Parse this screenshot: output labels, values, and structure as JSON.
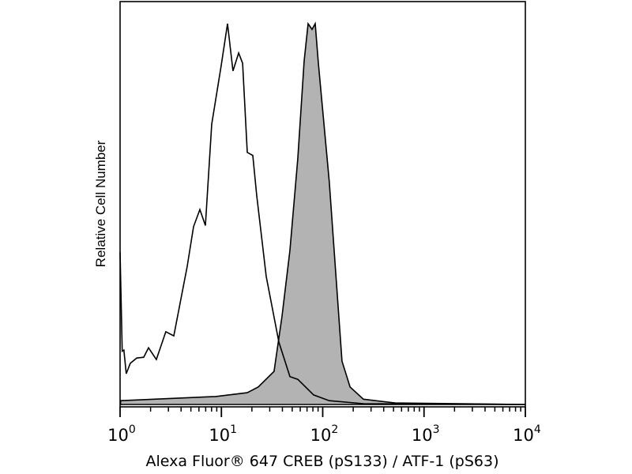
{
  "chart_data": {
    "type": "area",
    "title": "",
    "xlabel": "Alexa Fluor® 647 CREB (pS133) / ATF-1 (pS63)",
    "ylabel": "Relative Cell Number",
    "x_scale": "log",
    "xlim": [
      1,
      10000
    ],
    "ylim": [
      0,
      100
    ],
    "grid": false,
    "x_ticks": [
      {
        "base": "10",
        "exp": "0",
        "value": 1
      },
      {
        "base": "10",
        "exp": "1",
        "value": 10
      },
      {
        "base": "10",
        "exp": "2",
        "value": 100
      },
      {
        "base": "10",
        "exp": "3",
        "value": 1000
      },
      {
        "base": "10",
        "exp": "4",
        "value": 10000
      }
    ],
    "series": [
      {
        "style": "outline",
        "color": "#000000",
        "x": [
          1.0,
          1.05,
          1.09,
          1.15,
          1.26,
          1.46,
          1.71,
          1.91,
          2.28,
          2.83,
          3.39,
          4.6,
          5.31,
          6.13,
          6.95,
          8.03,
          9.96,
          11.5,
          13.0,
          14.8,
          16.2,
          18.0,
          20.4,
          22.3,
          27.7,
          36.9,
          47.5,
          56.8,
          81.3,
          116,
          252,
          10000
        ],
        "y": [
          40,
          14,
          14.3,
          8.1,
          10.8,
          12.2,
          12.4,
          14.9,
          11.8,
          19.1,
          18.0,
          36.3,
          46.7,
          51.2,
          47.0,
          73.6,
          89.0,
          100,
          87.6,
          92.3,
          89.6,
          66.2,
          65.4,
          55.0,
          33.6,
          16.4,
          7.3,
          6.6,
          2.5,
          1.0,
          0.2,
          0
        ]
      },
      {
        "style": "filled",
        "color": "#b3b3b3",
        "x": [
          1.01,
          8.78,
          18.0,
          23.1,
          33.1,
          39.7,
          47.5,
          56.8,
          65.6,
          71.8,
          78.5,
          84.3,
          90.6,
          116,
          155,
          186,
          252,
          517,
          10000
        ],
        "y": [
          1.0,
          2.1,
          3.1,
          4.6,
          8.7,
          23.2,
          40.5,
          64.7,
          90.2,
          100,
          98.5,
          100,
          89.6,
          58.5,
          11.4,
          4.6,
          1.4,
          0.4,
          0
        ]
      }
    ]
  }
}
